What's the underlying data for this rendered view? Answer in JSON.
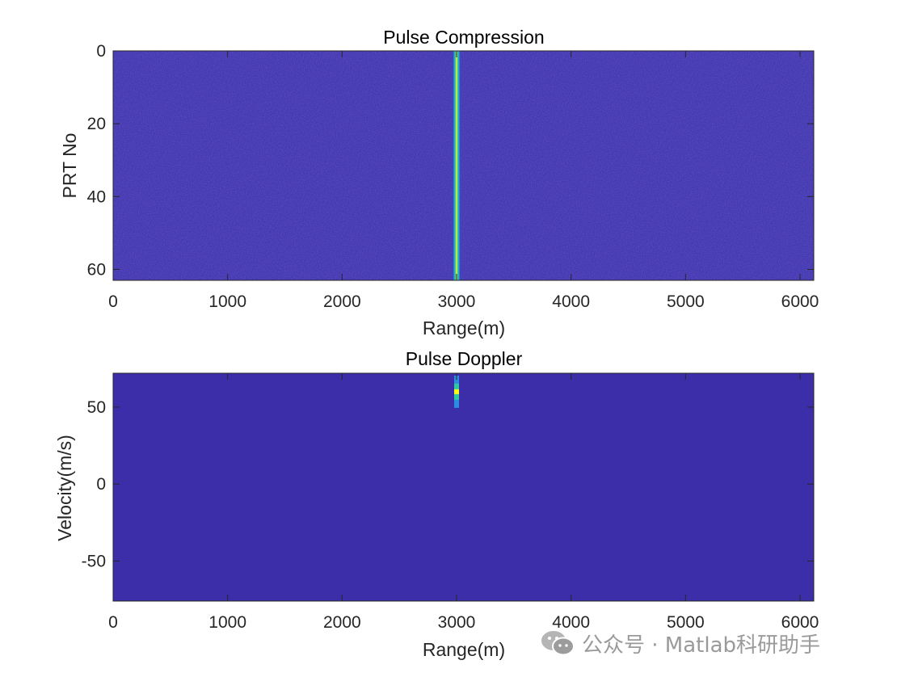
{
  "chart_data": [
    {
      "type": "heatmap",
      "title": "Pulse Compression",
      "xlabel": "Range(m)",
      "ylabel": "PRT No",
      "xlim": [
        0,
        6120
      ],
      "ylim": [
        63,
        0
      ],
      "y_reversed": true,
      "xticks": [
        0,
        1000,
        2000,
        3000,
        4000,
        5000,
        6000
      ],
      "yticks": [
        0,
        20,
        40,
        60
      ],
      "colormap": "parula",
      "background_color": "#3c2ea8",
      "features": [
        {
          "label": "target",
          "x": 3000,
          "y_from": 0,
          "y_to": 63,
          "intensity": 1.0,
          "shape": "vertical line"
        }
      ]
    },
    {
      "type": "heatmap",
      "title": "Pulse Doppler",
      "xlabel": "Range(m)",
      "ylabel": "Velocity(m/s)",
      "xlim": [
        0,
        6120
      ],
      "ylim": [
        -76,
        72
      ],
      "y_reversed": true,
      "xticks": [
        0,
        1000,
        2000,
        3000,
        4000,
        5000,
        6000
      ],
      "yticks": [
        -50,
        0,
        50
      ],
      "colormap": "parula",
      "background_color": "#3c2ea8",
      "features": [
        {
          "label": "target",
          "x": 3000,
          "y": 60,
          "intensity": 1.0,
          "shape": "point with vertical smear"
        }
      ]
    }
  ],
  "watermark": {
    "text": "公众号 · Matlab科研助手",
    "icon": "wechat-icon",
    "color": "#9a9a9a"
  }
}
